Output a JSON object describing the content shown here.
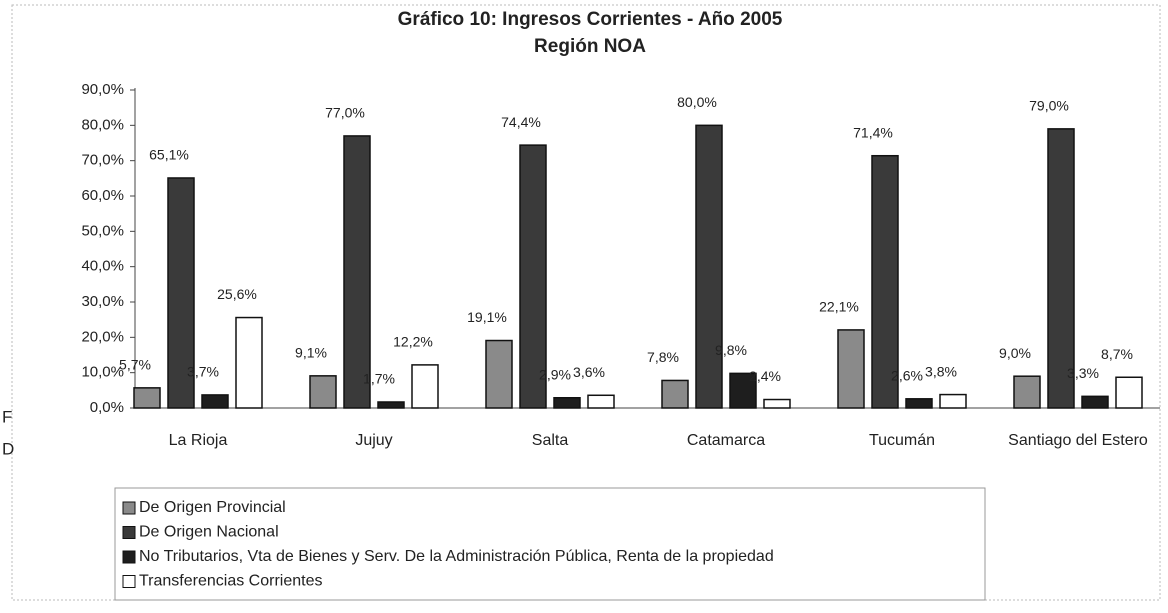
{
  "chart_data": {
    "type": "bar",
    "title": "Gráfico 10: Ingresos Corrientes - Año 2005",
    "subtitle": "Región NOA",
    "categories": [
      "La Rioja",
      "Jujuy",
      "Salta",
      "Catamarca",
      "Tucumán",
      "Santiago del Estero"
    ],
    "series": [
      {
        "name": "De Origen Provincial",
        "color": "#8a8a8a",
        "values": [
          5.7,
          9.1,
          19.1,
          7.8,
          22.1,
          9.0
        ],
        "value_labels": [
          "5,7%",
          "9,1%",
          "19,1%",
          "7,8%",
          "22,1%",
          "9,0%"
        ]
      },
      {
        "name": "De Origen Nacional",
        "color": "#3a3a3a",
        "values": [
          65.1,
          77.0,
          74.4,
          80.0,
          71.4,
          79.0
        ],
        "value_labels": [
          "65,1%",
          "77,0%",
          "74,4%",
          "80,0%",
          "71,4%",
          "79,0%"
        ]
      },
      {
        "name": "No Tributarios, Vta de Bienes y Serv. De la Administración Pública, Renta de la propiedad",
        "color": "#1e1e1e",
        "values": [
          3.7,
          1.7,
          2.9,
          9.8,
          2.6,
          3.3
        ],
        "value_labels": [
          "3,7%",
          "1,7%",
          "2,9%",
          "9,8%",
          "2,6%",
          "3,3%"
        ]
      },
      {
        "name": "Transferencias Corrientes",
        "color": "#ffffff",
        "values": [
          25.6,
          12.2,
          3.6,
          2.4,
          3.8,
          8.7
        ],
        "value_labels": [
          "25,6%",
          "12,2%",
          "3,6%",
          "2,4%",
          "3,8%",
          "8,7%"
        ]
      }
    ],
    "ylim": [
      0,
      90
    ],
    "yticks": [
      {
        "value": 0,
        "label": "0,0%"
      },
      {
        "value": 10,
        "label": "10,0%"
      },
      {
        "value": 20,
        "label": "20,0%"
      },
      {
        "value": 30,
        "label": "30,0%"
      },
      {
        "value": 40,
        "label": "40,0%"
      },
      {
        "value": 50,
        "label": "50,0%"
      },
      {
        "value": 60,
        "label": "60,0%"
      },
      {
        "value": 70,
        "label": "70,0%"
      },
      {
        "value": 80,
        "label": "80,0%"
      },
      {
        "value": 90,
        "label": "90,0%"
      }
    ],
    "grid": false,
    "annotations": [
      "F",
      "D"
    ]
  }
}
